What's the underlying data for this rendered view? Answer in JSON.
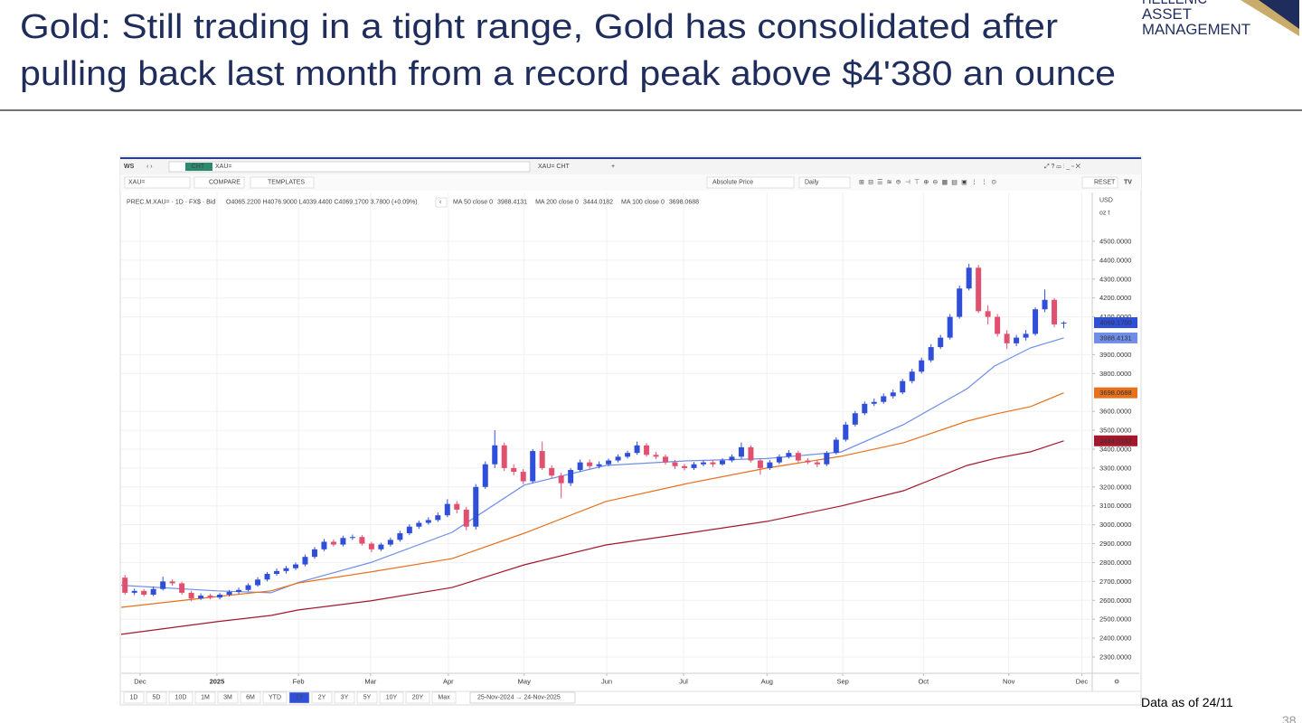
{
  "slide": {
    "title_lines": [
      "Gold: Still trading in a tight range, Gold has consolidated after",
      "pulling back last month from a record peak above $4'380 an ounce"
    ],
    "logo": [
      "HELLENIC",
      "ASSET",
      "MANAGEMENT"
    ],
    "note": "Data as of 24/11",
    "page": "38"
  },
  "toolbar": {
    "workspace": "WS",
    "search_tag": "CHT",
    "search_text": "XAU=",
    "tab": "XAU= CHT",
    "add": "+",
    "ric": "XAU=",
    "compare": "COMPARE",
    "templates": "TEMPLATES",
    "price_mode": "Absolute Price",
    "interval": "Daily",
    "reset": "RESET",
    "currency": "USD",
    "unit": "oz t",
    "ranges": [
      "1D",
      "5D",
      "10D",
      "1M",
      "3M",
      "6M",
      "YTD",
      "1Y",
      "2Y",
      "3Y",
      "5Y",
      "10Y",
      "20Y",
      "Max"
    ],
    "active_range": "1Y",
    "date_range": "25-Nov-2024 → 24-Nov-2025"
  },
  "chart_data": {
    "type": "candlestick",
    "legend_title": "PREC.M.XAU= · 1D · FX$ · Bid",
    "ohlc_text": "O4065.2200 H4076.9000 L4039.4400 C4069.1700 3.7800 (+0.09%)",
    "up_color": "#2f4fd8",
    "down_color": "#e2506f",
    "open": [
      2720,
      2640,
      2650,
      2630,
      2660,
      2700,
      2690,
      2640,
      2610,
      2625,
      2615,
      2630,
      2645,
      2655,
      2680,
      2710,
      2740,
      2755,
      2770,
      2790,
      2830,
      2870,
      2910,
      2895,
      2930,
      2935,
      2900,
      2870,
      2895,
      2920,
      2955,
      2990,
      3010,
      3025,
      3050,
      3110,
      3080,
      2990,
      3200,
      3320,
      3420,
      3300,
      3280,
      3230,
      3390,
      3300,
      3260,
      3220,
      3290,
      3330,
      3310,
      3320,
      3340,
      3360,
      3380,
      3420,
      3370,
      3360,
      3330,
      3310,
      3300,
      3320,
      3330,
      3320,
      3340,
      3360,
      3410,
      3340,
      3300,
      3330,
      3360,
      3380,
      3340,
      3330,
      3320,
      3380,
      3450,
      3530,
      3590,
      3640,
      3650,
      3680,
      3700,
      3760,
      3810,
      3870,
      3940,
      3990,
      4100,
      4250,
      4360,
      4130,
      4100,
      4010,
      3960,
      3990,
      4010,
      4140,
      4190,
      4065.22
    ],
    "high": [
      2735,
      2662,
      2660,
      2674,
      2725,
      2710,
      2698,
      2650,
      2637,
      2635,
      2640,
      2655,
      2668,
      2690,
      2722,
      2750,
      2768,
      2782,
      2800,
      2842,
      2882,
      2925,
      2922,
      2942,
      2948,
      2945,
      2910,
      2905,
      2932,
      2968,
      3002,
      3022,
      3040,
      3065,
      3135,
      3125,
      3095,
      3215,
      3335,
      3500,
      3435,
      3320,
      3295,
      3400,
      3440,
      3315,
      3275,
      3300,
      3345,
      3345,
      3335,
      3350,
      3372,
      3392,
      3440,
      3432,
      3385,
      3372,
      3342,
      3322,
      3332,
      3342,
      3345,
      3352,
      3372,
      3435,
      3420,
      3350,
      3342,
      3372,
      3395,
      3392,
      3352,
      3340,
      3390,
      3462,
      3545,
      3602,
      3652,
      3668,
      3695,
      3715,
      3772,
      3825,
      3885,
      3955,
      4005,
      4115,
      4265,
      4381,
      4375,
      4160,
      4115,
      4030,
      4005,
      4030,
      4150,
      4245,
      4200,
      4076.9
    ],
    "low": [
      2630,
      2628,
      2620,
      2622,
      2652,
      2678,
      2630,
      2595,
      2602,
      2605,
      2605,
      2620,
      2635,
      2648,
      2672,
      2700,
      2730,
      2742,
      2760,
      2780,
      2820,
      2860,
      2885,
      2885,
      2920,
      2890,
      2855,
      2860,
      2885,
      2910,
      2945,
      2978,
      3000,
      3015,
      3040,
      3060,
      2970,
      2975,
      3190,
      3300,
      3285,
      3262,
      3215,
      3220,
      3290,
      3245,
      3140,
      3205,
      3280,
      3295,
      3298,
      3310,
      3330,
      3350,
      3370,
      3360,
      3348,
      3318,
      3295,
      3288,
      3290,
      3310,
      3305,
      3312,
      3330,
      3350,
      3330,
      3265,
      3290,
      3320,
      3350,
      3330,
      3320,
      3305,
      3310,
      3372,
      3440,
      3520,
      3580,
      3628,
      3640,
      3668,
      3690,
      3748,
      3800,
      3860,
      3930,
      3980,
      4090,
      4240,
      4120,
      4060,
      3995,
      3930,
      3945,
      3975,
      4000,
      4125,
      4045,
      4039.44
    ],
    "close": [
      2640,
      2650,
      2630,
      2660,
      2700,
      2690,
      2640,
      2610,
      2625,
      2615,
      2630,
      2645,
      2655,
      2680,
      2710,
      2740,
      2755,
      2770,
      2790,
      2830,
      2870,
      2910,
      2895,
      2930,
      2935,
      2900,
      2870,
      2895,
      2920,
      2955,
      2990,
      3010,
      3025,
      3050,
      3110,
      3080,
      2990,
      3200,
      3320,
      3420,
      3300,
      3280,
      3230,
      3390,
      3300,
      3260,
      3220,
      3290,
      3330,
      3310,
      3320,
      3340,
      3360,
      3380,
      3420,
      3370,
      3360,
      3330,
      3310,
      3300,
      3320,
      3330,
      3320,
      3340,
      3360,
      3410,
      3340,
      3300,
      3330,
      3360,
      3380,
      3340,
      3330,
      3320,
      3380,
      3450,
      3530,
      3590,
      3640,
      3650,
      3680,
      3700,
      3760,
      3810,
      3870,
      3940,
      3990,
      4100,
      4250,
      4360,
      4130,
      4100,
      4010,
      3960,
      3990,
      4010,
      4140,
      4190,
      4060,
      4069.17
    ],
    "last_label": "4069.1700",
    "series": [
      {
        "name": "MA 50 close 0",
        "color": "#6f8ee8",
        "x": [
          -0.4,
          9.7,
          15.4,
          18.3,
          25.9,
          34.5,
          42.1,
          50.7,
          59.3,
          67.7,
          75.5,
          82.1,
          88.8,
          91.7,
          95.5,
          99
        ],
        "values": [
          2680,
          2650,
          2640,
          2695,
          2800,
          2960,
          3210,
          3314,
          3338,
          3350,
          3385,
          3530,
          3720,
          3840,
          3936,
          3988.4131
        ],
        "value_label": "3988.4131"
      },
      {
        "name": "MA 200 close 0",
        "color": "#a3182c",
        "x": [
          -0.4,
          9.7,
          15.4,
          18.3,
          25.9,
          34.5,
          42.1,
          50.7,
          59.3,
          67.7,
          75.5,
          82.1,
          88.8,
          91.7,
          95.5,
          99
        ],
        "values": [
          2420,
          2487,
          2520,
          2549,
          2597,
          2668,
          2788,
          2893,
          2955,
          3018,
          3099,
          3180,
          3314,
          3350,
          3386,
          3444.0182
        ],
        "value_label": "3444.0182"
      },
      {
        "name": "MA 100 close 0",
        "color": "#e8711c",
        "x": [
          -0.4,
          9.7,
          15.4,
          18.3,
          25.9,
          34.5,
          42.1,
          50.7,
          59.3,
          67.7,
          75.5,
          82.1,
          88.8,
          91.7,
          95.5,
          99
        ],
        "values": [
          2563,
          2620,
          2650,
          2692,
          2750,
          2821,
          2955,
          3123,
          3218,
          3300,
          3362,
          3434,
          3548,
          3585,
          3625,
          3698.0688
        ],
        "value_label": "3698.0688"
      }
    ],
    "xlim": [
      -0.4,
      102
    ],
    "xticks": [
      {
        "value": 1.6,
        "label": "Dec"
      },
      {
        "value": 9.7,
        "label": "2025"
      },
      {
        "value": 18.3,
        "label": "Feb"
      },
      {
        "value": 25.9,
        "label": "Mar"
      },
      {
        "value": 34.1,
        "label": "Apr"
      },
      {
        "value": 42.1,
        "label": "May"
      },
      {
        "value": 50.8,
        "label": "Jun"
      },
      {
        "value": 58.9,
        "label": "Jul"
      },
      {
        "value": 67.7,
        "label": "Aug"
      },
      {
        "value": 75.7,
        "label": "Sep"
      },
      {
        "value": 84.2,
        "label": "Oct"
      },
      {
        "value": 93.2,
        "label": "Nov"
      },
      {
        "value": 100.9,
        "label": "Dec"
      }
    ],
    "ylim": [
      2214,
      4758
    ],
    "yticks": [
      {
        "value": 4500,
        "label": "4500.0000"
      },
      {
        "value": 4400,
        "label": "4400.0000"
      },
      {
        "value": 4300,
        "label": "4300.0000"
      },
      {
        "value": 4200,
        "label": "4200.0000"
      },
      {
        "value": 4100,
        "label": "4100.0000"
      },
      {
        "value": 3900,
        "label": "3900.0000"
      },
      {
        "value": 3800,
        "label": "3800.0000"
      },
      {
        "value": 3600,
        "label": "3600.0000"
      },
      {
        "value": 3500,
        "label": "3500.0000"
      },
      {
        "value": 3400,
        "label": "3400.0000"
      },
      {
        "value": 3300,
        "label": "3300.0000"
      },
      {
        "value": 3200,
        "label": "3200.0000"
      },
      {
        "value": 3100,
        "label": "3100.0000"
      },
      {
        "value": 3000,
        "label": "3000.0000"
      },
      {
        "value": 2900,
        "label": "2900.0000"
      },
      {
        "value": 2800,
        "label": "2800.0000"
      },
      {
        "value": 2700,
        "label": "2700.0000"
      },
      {
        "value": 2600,
        "label": "2600.0000"
      },
      {
        "value": 2500,
        "label": "2500.0000"
      },
      {
        "value": 2400,
        "label": "2400.0000"
      },
      {
        "value": 2300,
        "label": "2300.0000"
      }
    ],
    "grid": true
  }
}
